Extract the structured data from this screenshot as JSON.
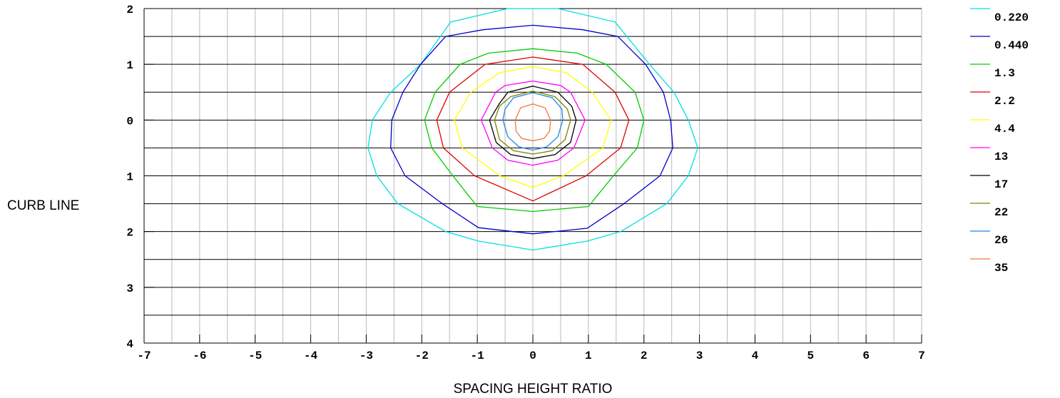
{
  "chart_data": {
    "type": "contour",
    "x_label": "SPACING HEIGHT RATIO",
    "y_label": "CURB LINE",
    "xlim": [
      -7,
      7
    ],
    "ylim": [
      -4,
      2
    ],
    "xticks": [
      -7,
      -6,
      -5,
      -4,
      -3,
      -2,
      -1,
      0,
      1,
      2,
      3,
      4,
      5,
      6,
      7
    ],
    "yticks": [
      2,
      1,
      0,
      {
        "value": -1,
        "label": "1"
      },
      {
        "value": -2,
        "label": "2"
      },
      {
        "value": -3,
        "label": "3"
      },
      {
        "value": -4,
        "label": "4"
      }
    ],
    "xgrid": [
      -7,
      -6.5,
      -6,
      -5.5,
      -5,
      -4.5,
      -4,
      -3.5,
      -3,
      -2.5,
      -2,
      -1.5,
      -1,
      -0.5,
      0,
      0.5,
      1,
      1.5,
      2,
      2.5,
      3,
      3.5,
      4,
      4.5,
      5,
      5.5,
      6,
      6.5,
      7
    ],
    "ygrid": [
      2,
      1.5,
      1,
      0.5,
      0,
      -0.5,
      -1,
      -1.5,
      -2,
      -2.5,
      -3,
      -3.5,
      -4
    ],
    "grid": true,
    "legend": "right",
    "series": [
      {
        "name": "0.220",
        "color": "#00e0e0",
        "x": [
          0,
          0.45,
          1.48,
          2.1,
          2.54,
          2.8,
          2.97,
          2.8,
          2.41,
          1.58,
          0.98,
          0,
          -0.98,
          -1.57,
          -2.43,
          -2.81,
          -2.97,
          -2.89,
          -2.56,
          -2.02,
          -1.48,
          -0.45
        ],
        "y": [
          2,
          2,
          1.76,
          1,
          0.5,
          0,
          -0.5,
          -1,
          -1.5,
          -2,
          -2.17,
          -2.33,
          -2.17,
          -2,
          -1.5,
          -1,
          -0.5,
          0,
          0.5,
          1,
          1.76,
          2
        ]
      },
      {
        "name": "0.440",
        "color": "#0000cc",
        "x": [
          0,
          0.9,
          1.53,
          2.03,
          2.35,
          2.48,
          2.52,
          2.29,
          1.64,
          0.98,
          0,
          -0.98,
          -1.63,
          -2.3,
          -2.56,
          -2.54,
          -2.34,
          -2.02,
          -1.57,
          -0.9
        ],
        "y": [
          1.7,
          1.62,
          1.5,
          1,
          0.5,
          0,
          -0.5,
          -1,
          -1.5,
          -1.94,
          -2.04,
          -1.93,
          -1.5,
          -1,
          -0.5,
          0,
          0.5,
          1,
          1.5,
          1.62
        ]
      },
      {
        "name": "1.3",
        "color": "#00cc00",
        "x": [
          0,
          0.8,
          1.32,
          1.84,
          2.0,
          1.88,
          1.45,
          1.0,
          0,
          -1.0,
          -1.44,
          -1.82,
          -1.95,
          -1.76,
          -1.31,
          -0.8
        ],
        "y": [
          1.28,
          1.2,
          1,
          0.5,
          0,
          -0.5,
          -1,
          -1.55,
          -1.64,
          -1.55,
          -1,
          -0.5,
          0,
          0.5,
          1,
          1.2
        ]
      },
      {
        "name": "2.2",
        "color": "#e00000",
        "x": [
          0,
          0.9,
          1.48,
          1.73,
          1.58,
          0.96,
          0,
          -1.05,
          -1.61,
          -1.73,
          -1.5,
          -0.86
        ],
        "y": [
          1.13,
          1,
          0.5,
          0,
          -0.5,
          -1,
          -1.45,
          -1,
          -0.5,
          0,
          0.5,
          1
        ]
      },
      {
        "name": "4.4",
        "color": "#ffff00",
        "x": [
          0,
          0.6,
          1.07,
          1.41,
          1.26,
          0.55,
          0,
          -0.6,
          -1.27,
          -1.41,
          -1.12,
          -0.6
        ],
        "y": [
          0.96,
          0.85,
          0.5,
          0,
          -0.5,
          -1,
          -1.21,
          -1,
          -0.5,
          0,
          0.5,
          0.85
        ]
      },
      {
        "name": "13",
        "color": "#ff00ff",
        "x": [
          0,
          0.5,
          0.68,
          0.94,
          0.74,
          0.45,
          0,
          -0.45,
          -0.73,
          -0.93,
          -0.67,
          -0.5
        ],
        "y": [
          0.7,
          0.62,
          0.5,
          0,
          -0.5,
          -0.72,
          -0.81,
          -0.72,
          -0.5,
          0,
          0.5,
          0.62
        ]
      },
      {
        "name": "17",
        "color": "#000000",
        "x": [
          0,
          0.45,
          0.7,
          0.78,
          0.68,
          0.4,
          0,
          -0.4,
          -0.66,
          -0.78,
          -0.6,
          -0.45
        ],
        "y": [
          0.61,
          0.5,
          0.25,
          0,
          -0.4,
          -0.62,
          -0.69,
          -0.62,
          -0.4,
          0,
          0.3,
          0.5
        ]
      },
      {
        "name": "22",
        "color": "#808000",
        "x": [
          0,
          0.4,
          0.62,
          0.68,
          0.58,
          0.35,
          0,
          -0.35,
          -0.6,
          -0.69,
          -0.6,
          -0.4
        ],
        "y": [
          0.52,
          0.42,
          0.2,
          0,
          -0.35,
          -0.55,
          -0.61,
          -0.55,
          -0.35,
          0,
          0.25,
          0.42
        ]
      },
      {
        "name": "26",
        "color": "#1e88e5",
        "x": [
          0,
          0.35,
          0.52,
          0.54,
          0.45,
          0.25,
          0,
          -0.25,
          -0.45,
          -0.54,
          -0.5,
          -0.35
        ],
        "y": [
          0.49,
          0.4,
          0.2,
          0,
          -0.3,
          -0.48,
          -0.54,
          -0.48,
          -0.3,
          0,
          0.2,
          0.4
        ]
      },
      {
        "name": "35",
        "color": "#f07840",
        "x": [
          0,
          0.22,
          0.32,
          0.3,
          0.2,
          0,
          -0.2,
          -0.3,
          -0.32,
          -0.22
        ],
        "y": [
          0.29,
          0.22,
          0,
          -0.2,
          -0.33,
          -0.37,
          -0.33,
          -0.2,
          0,
          0.22
        ]
      }
    ]
  }
}
